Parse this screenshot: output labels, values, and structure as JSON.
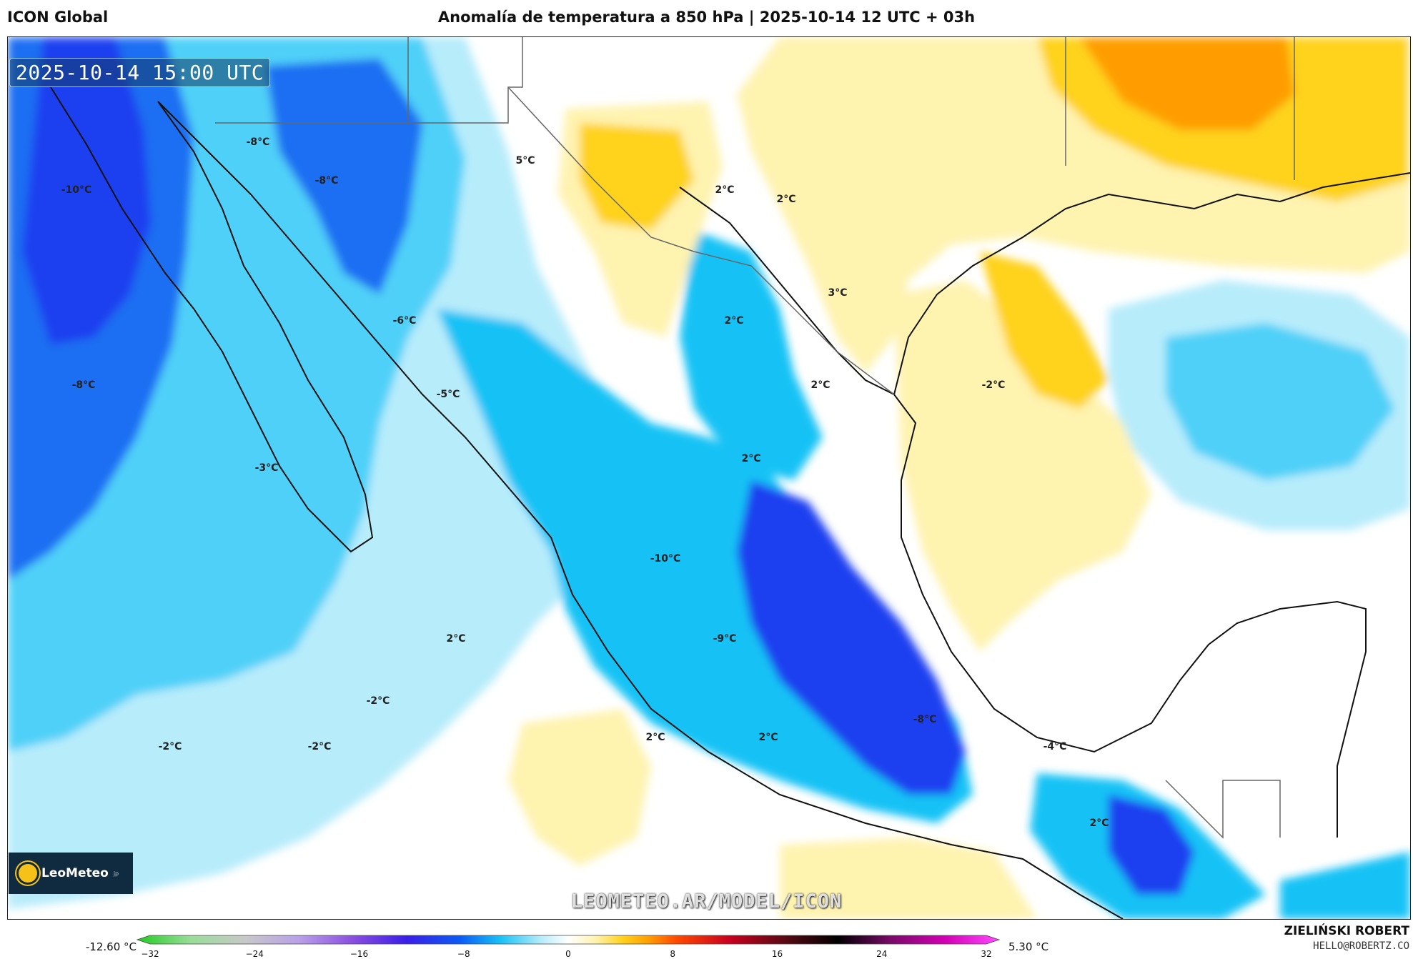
{
  "header": {
    "model": "ICON Global",
    "title": "Anomalía de temperatura a 850 hPa | 2025-10-14 12 UTC + 03h"
  },
  "map": {
    "timestamp": "2025-10-14 15:00 UTC",
    "labels": [
      {
        "text": "-10°C"
      },
      {
        "text": "-8°C"
      },
      {
        "text": "-8°C"
      },
      {
        "text": "5°C"
      },
      {
        "text": "2°C"
      },
      {
        "text": "2°C"
      },
      {
        "text": "3°C"
      },
      {
        "text": "2°C"
      },
      {
        "text": "-6°C"
      },
      {
        "text": "-5°C"
      },
      {
        "text": "-8°C"
      },
      {
        "text": "2°C"
      },
      {
        "text": "-2°C"
      },
      {
        "text": "-3°C"
      },
      {
        "text": "2°C"
      },
      {
        "text": "-10°C"
      },
      {
        "text": "-9°C"
      },
      {
        "text": "2°C"
      },
      {
        "text": "-2°C"
      },
      {
        "text": "-2°C"
      },
      {
        "text": "-2°C"
      },
      {
        "text": "2°C"
      },
      {
        "text": "2°C"
      },
      {
        "text": "-8°C"
      },
      {
        "text": "-4°C"
      },
      {
        "text": "2°C"
      }
    ]
  },
  "logo": {
    "name": "LeoMeteo",
    "suffix": "jp"
  },
  "watermark": "LEOMETEO.AR/MODEL/ICON",
  "colorbar": {
    "min_label": "-12.60 °C",
    "max_label": "5.30 °C",
    "ticks": [
      "−32",
      "−24",
      "−16",
      "−8",
      "0",
      "8",
      "16",
      "24",
      "32"
    ],
    "stops": [
      {
        "value": -32,
        "color": "#22cc22"
      },
      {
        "value": -28,
        "color": "#99dd99"
      },
      {
        "value": -24,
        "color": "#c8c8c8"
      },
      {
        "value": -20,
        "color": "#b9a0e8"
      },
      {
        "value": -16,
        "color": "#8a4ee0"
      },
      {
        "value": -12,
        "color": "#3a1ee8"
      },
      {
        "value": -8,
        "color": "#0a5cf5"
      },
      {
        "value": -5,
        "color": "#19c2f5"
      },
      {
        "value": -2,
        "color": "#b7ecfb"
      },
      {
        "value": 0,
        "color": "#ffffff"
      },
      {
        "value": 2,
        "color": "#fff3b0"
      },
      {
        "value": 4,
        "color": "#ffd21e"
      },
      {
        "value": 6,
        "color": "#ff9d00"
      },
      {
        "value": 8,
        "color": "#ff4a00"
      },
      {
        "value": 12,
        "color": "#c8001e"
      },
      {
        "value": 16,
        "color": "#5a0a14"
      },
      {
        "value": 20,
        "color": "#000000"
      },
      {
        "value": 24,
        "color": "#7a0a6a"
      },
      {
        "value": 28,
        "color": "#d300b4"
      },
      {
        "value": 32,
        "color": "#ff4aff"
      }
    ]
  },
  "credits": {
    "author": "ZIELIŃSKI ROBERT",
    "email": "HELLO@ROBERTZ.CO"
  }
}
